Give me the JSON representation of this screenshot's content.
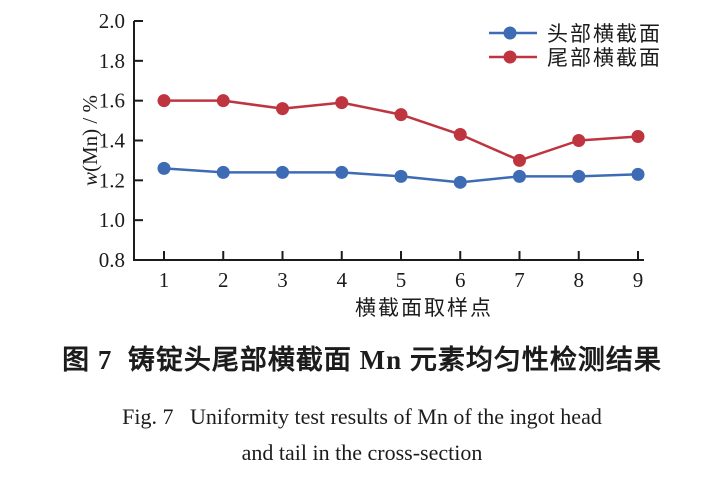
{
  "figure": {
    "caption_cn": "图 7  铸锭头尾部横截面 Mn 元素均匀性检测结果",
    "caption_en_line1": "Fig. 7   Uniformity test results of Mn of the ingot head",
    "caption_en_line2": "and tail in the cross-section"
  },
  "chart_data": {
    "type": "line",
    "x": [
      1,
      2,
      3,
      4,
      5,
      6,
      7,
      8,
      9
    ],
    "xlabel": "横截面取样点",
    "ylabel": "w(Mn) / %",
    "ylim": [
      0.8,
      2.0
    ],
    "yticks": [
      "2.0",
      "1.8",
      "1.6",
      "1.4",
      "1.2",
      "1.0",
      "0.8"
    ],
    "grid": false,
    "legend_position": "top-right-inside",
    "axis_color": "#1c1c1c",
    "series": [
      {
        "name": "头部横截面",
        "color": "#3D6CB4",
        "marker": "circle",
        "values": [
          1.26,
          1.24,
          1.24,
          1.24,
          1.22,
          1.19,
          1.22,
          1.22,
          1.23
        ]
      },
      {
        "name": "尾部横截面",
        "color": "#BE3540",
        "marker": "circle",
        "values": [
          1.6,
          1.6,
          1.56,
          1.59,
          1.53,
          1.43,
          1.3,
          1.4,
          1.42
        ]
      }
    ]
  }
}
